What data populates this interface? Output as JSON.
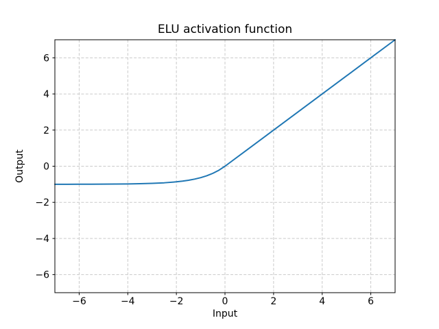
{
  "figure": {
    "background": "#ffffff"
  },
  "chart_data": {
    "type": "line",
    "title": "ELU activation function",
    "xlabel": "Input",
    "ylabel": "Output",
    "xlim": [
      -7,
      7
    ],
    "ylim": [
      -7,
      7
    ],
    "xticks": [
      -6,
      -4,
      -2,
      0,
      2,
      4,
      6
    ],
    "yticks": [
      -6,
      -4,
      -2,
      0,
      2,
      4,
      6
    ],
    "xtick_labels": [
      "−6",
      "−4",
      "−2",
      "0",
      "2",
      "4",
      "6"
    ],
    "ytick_labels": [
      "−6",
      "−4",
      "−2",
      "0",
      "2",
      "4",
      "6"
    ],
    "grid": true,
    "grid_linestyle": "dashed",
    "legend": false,
    "series": [
      {
        "name": "ELU",
        "color": "#1f77b4",
        "linewidth": 2,
        "x": [
          -7,
          -6.5,
          -6,
          -5.5,
          -5,
          -4.5,
          -4,
          -3.5,
          -3,
          -2.5,
          -2,
          -1.75,
          -1.5,
          -1.25,
          -1,
          -0.75,
          -0.5,
          -0.25,
          0,
          1,
          2,
          3,
          4,
          5,
          6,
          7
        ],
        "y": [
          -0.9991,
          -0.9985,
          -0.9975,
          -0.9959,
          -0.9933,
          -0.9889,
          -0.9817,
          -0.9698,
          -0.9502,
          -0.9179,
          -0.8647,
          -0.8262,
          -0.7769,
          -0.7135,
          -0.6321,
          -0.5276,
          -0.3935,
          -0.2212,
          0,
          1,
          2,
          3,
          4,
          5,
          6,
          7
        ]
      }
    ]
  },
  "colors": {
    "line": "#1f77b4",
    "grid": "#c9c9c9",
    "spine": "#000000",
    "text": "#000000"
  }
}
